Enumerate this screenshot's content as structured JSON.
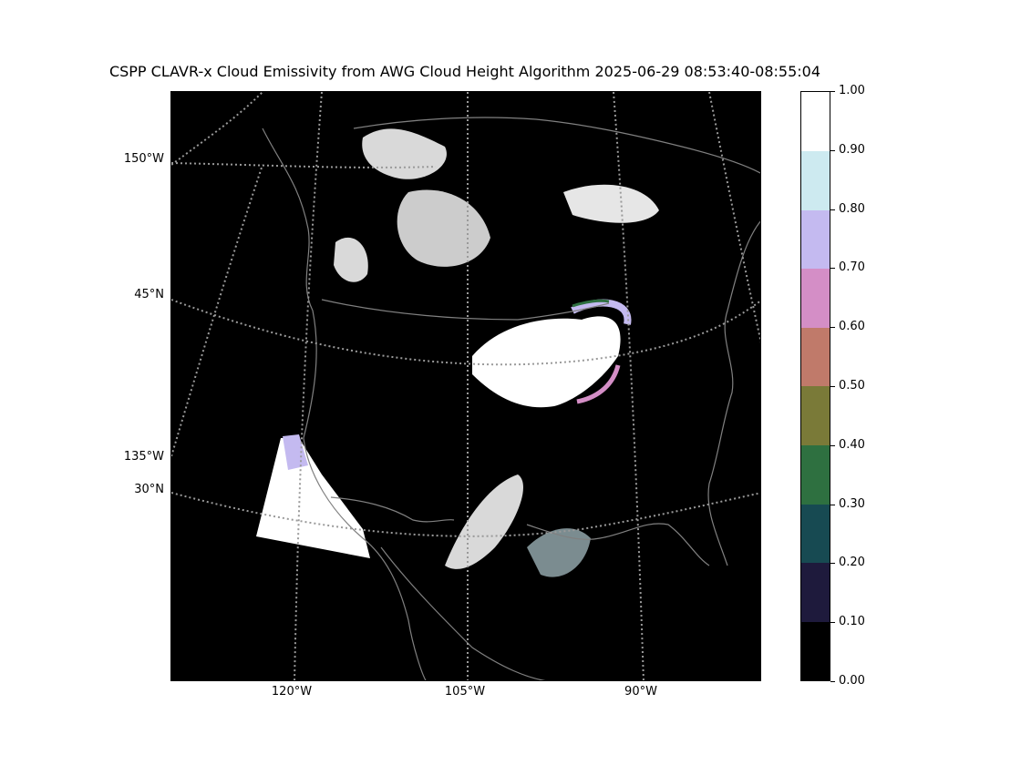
{
  "title": "CSPP CLAVR-x Cloud Emissivity from AWG Cloud Height Algorithm 2025-06-29 08:53:40-08:55:04",
  "map": {
    "lat_labels": [
      "150°W",
      "45°N",
      "135°W",
      "30°N"
    ],
    "lon_labels": [
      "120°W",
      "105°W",
      "90°W"
    ]
  },
  "colorbar": {
    "ticks": [
      "0.00",
      "0.10",
      "0.20",
      "0.30",
      "0.40",
      "0.50",
      "0.60",
      "0.70",
      "0.80",
      "0.90",
      "1.00"
    ],
    "colors": [
      "#000000",
      "#1e1a3c",
      "#174a52",
      "#2e7040",
      "#7a7a38",
      "#c07a6a",
      "#d48ec6",
      "#c4baf0",
      "#cdeaf0",
      "#ffffff"
    ]
  }
}
